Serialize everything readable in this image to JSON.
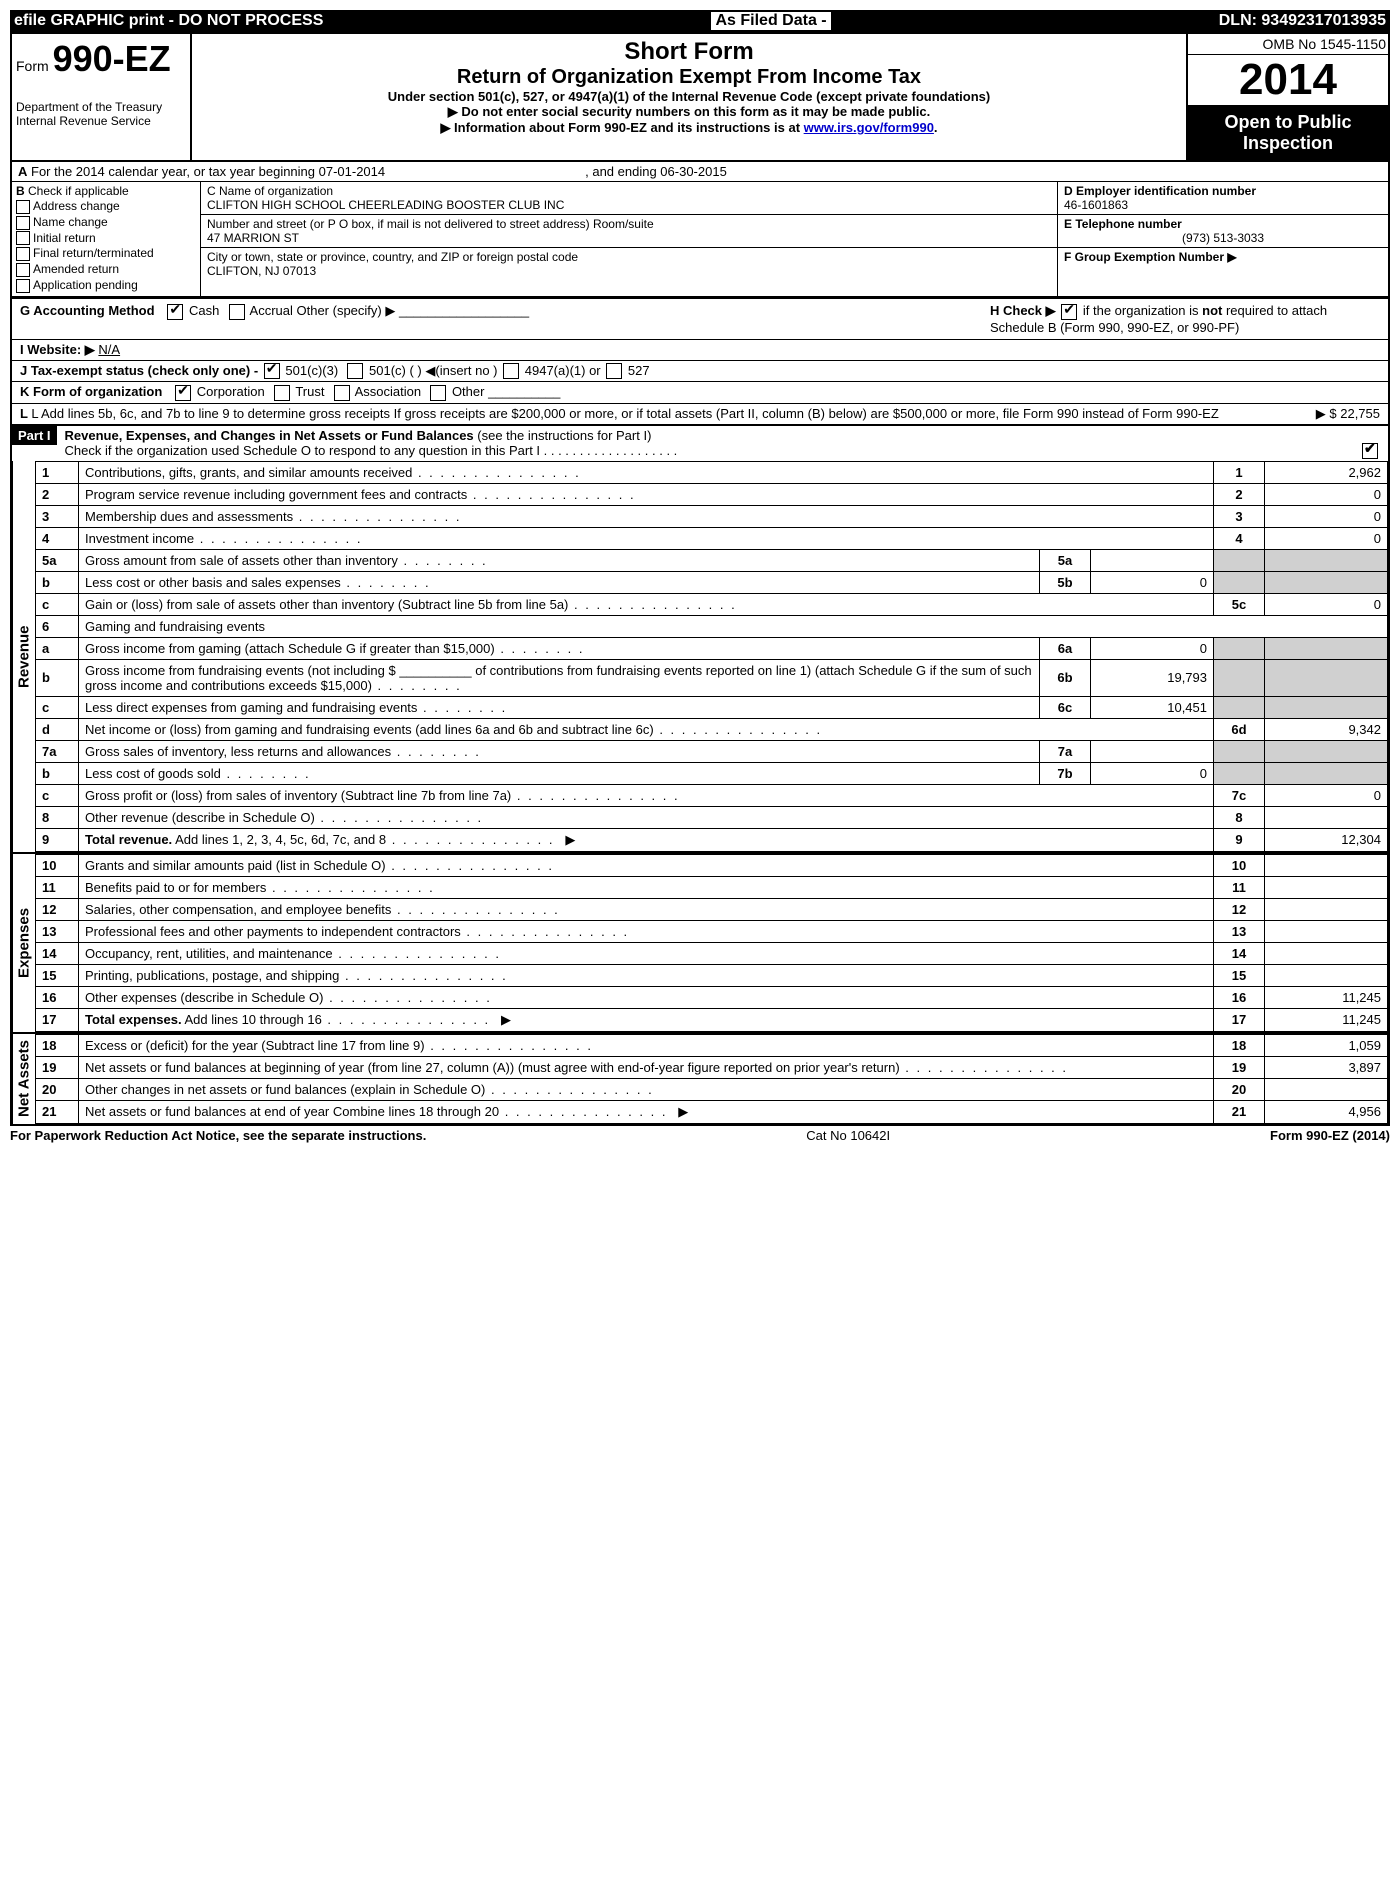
{
  "topbar": {
    "left": "efile GRAPHIC print - DO NOT PROCESS",
    "center": "As Filed Data -",
    "right": "DLN: 93492317013935"
  },
  "header": {
    "form_prefix": "Form",
    "form_name": "990-EZ",
    "dept1": "Department of the Treasury",
    "dept2": "Internal Revenue Service",
    "short_form": "Short Form",
    "main_title": "Return of Organization Exempt From Income Tax",
    "subtitle": "Under section 501(c), 527, or 4947(a)(1) of the Internal Revenue Code (except private foundations)",
    "note1": "▶ Do not enter social security numbers on this form as it may be made public.",
    "note2_prefix": "▶ Information about Form 990-EZ and its instructions is at ",
    "note2_link": "www.irs.gov/form990",
    "note2_suffix": ".",
    "omb": "OMB No 1545-1150",
    "year": "2014",
    "open1": "Open to Public",
    "open2": "Inspection"
  },
  "section_a": {
    "a_text": "For the 2014 calendar year, or tax year beginning 07-01-2014",
    "a_end": ", and ending 06-30-2015",
    "b_label": "Check if applicable",
    "b_opts": [
      "Address change",
      "Name change",
      "Initial return",
      "Final return/terminated",
      "Amended return",
      "Application pending"
    ],
    "c_label": "C Name of organization",
    "c_value": "CLIFTON HIGH SCHOOL CHEERLEADING BOOSTER CLUB INC",
    "addr_label": "Number and street (or P O box, if mail is not delivered to street address) Room/suite",
    "addr_value": "47 MARRION ST",
    "city_label": "City or town, state or province, country, and ZIP or foreign postal code",
    "city_value": "CLIFTON, NJ  07013",
    "d_label": "D Employer identification number",
    "d_value": "46-1601863",
    "e_label": "E Telephone number",
    "e_value": "(973) 513-3033",
    "f_label": "F Group Exemption Number  ▶"
  },
  "section_ghijk": {
    "g": "G Accounting Method",
    "g_cash": "Cash",
    "g_accrual": "Accrual  Other (specify) ▶",
    "h": "H  Check ▶",
    "h_rest": " if the organization is ",
    "h_not": "not",
    "h_rest2": " required to attach Schedule B (Form 990, 990-EZ, or 990-PF)",
    "i": "I Website: ▶",
    "i_value": "N/A",
    "j": "J Tax-exempt status (check only one) -",
    "j_501c3": "501(c)(3)",
    "j_501c": "501(c) (   ) ◀(insert no )",
    "j_4947": "4947(a)(1) or",
    "j_527": "527",
    "k": "K Form of organization",
    "k_corp": "Corporation",
    "k_trust": "Trust",
    "k_assoc": "Association",
    "k_other": "Other",
    "l": "L Add lines 5b, 6c, and 7b to line 9 to determine gross receipts If gross receipts are $200,000 or more, or if total assets (Part II, column (B) below) are $500,000 or more, file Form 990 instead of Form 990-EZ",
    "l_amount": "▶ $ 22,755"
  },
  "part1": {
    "label": "Part I",
    "title": "Revenue, Expenses, and Changes in Net Assets or Fund Balances",
    "title_suffix": " (see the instructions for Part I)",
    "schedO": "Check if the organization used Schedule O to respond to any question in this Part I . . . . . . . . . . . . . . . . . . .",
    "sections": {
      "revenue": "Revenue",
      "expenses": "Expenses",
      "netassets": "Net Assets"
    },
    "lines": [
      {
        "n": "1",
        "desc": "Contributions, gifts, grants, and similar amounts received",
        "box": "1",
        "amt": "2,962"
      },
      {
        "n": "2",
        "desc": "Program service revenue including government fees and contracts",
        "box": "2",
        "amt": "0"
      },
      {
        "n": "3",
        "desc": "Membership dues and assessments",
        "box": "3",
        "amt": "0"
      },
      {
        "n": "4",
        "desc": "Investment income",
        "box": "4",
        "amt": "0"
      },
      {
        "n": "5a",
        "desc": "Gross amount from sale of assets other than inventory",
        "sub": "5a",
        "subamt": ""
      },
      {
        "n": "b",
        "desc": "Less  cost or other basis and sales expenses",
        "sub": "5b",
        "subamt": "0"
      },
      {
        "n": "c",
        "desc": "Gain or (loss) from sale of assets other than inventory (Subtract line 5b from line 5a)",
        "box": "5c",
        "amt": "0"
      },
      {
        "n": "6",
        "desc": "Gaming and fundraising events",
        "header": true
      },
      {
        "n": "a",
        "desc": "Gross income from gaming (attach Schedule G if greater than $15,000)",
        "sub": "6a",
        "subamt": "0"
      },
      {
        "n": "b",
        "desc": "Gross income from fundraising events (not including $ __________ of contributions from fundraising events reported on line 1) (attach Schedule G if the sum of such gross income and contributions exceeds $15,000)",
        "sub": "6b",
        "subamt": "19,793"
      },
      {
        "n": "c",
        "desc": "Less  direct expenses from gaming and fundraising events",
        "sub": "6c",
        "subamt": "10,451"
      },
      {
        "n": "d",
        "desc": "Net income or (loss) from gaming and fundraising events (add lines 6a and 6b and subtract line 6c)",
        "box": "6d",
        "amt": "9,342"
      },
      {
        "n": "7a",
        "desc": "Gross sales of inventory, less returns and allowances",
        "sub": "7a",
        "subamt": ""
      },
      {
        "n": "b",
        "desc": "Less  cost of goods sold",
        "sub": "7b",
        "subamt": "0"
      },
      {
        "n": "c",
        "desc": "Gross profit or (loss) from sales of inventory (Subtract line 7b from line 7a)",
        "box": "7c",
        "amt": "0"
      },
      {
        "n": "8",
        "desc": "Other revenue (describe in Schedule O)",
        "box": "8",
        "amt": ""
      },
      {
        "n": "9",
        "desc": "Total revenue. Add lines 1, 2, 3, 4, 5c, 6d, 7c, and 8",
        "box": "9",
        "amt": "12,304",
        "bold": true,
        "arrow": true
      }
    ],
    "exp_lines": [
      {
        "n": "10",
        "desc": "Grants and similar amounts paid (list in Schedule O)",
        "box": "10",
        "amt": ""
      },
      {
        "n": "11",
        "desc": "Benefits paid to or for members",
        "box": "11",
        "amt": ""
      },
      {
        "n": "12",
        "desc": "Salaries, other compensation, and employee benefits",
        "box": "12",
        "amt": ""
      },
      {
        "n": "13",
        "desc": "Professional fees and other payments to independent contractors",
        "box": "13",
        "amt": ""
      },
      {
        "n": "14",
        "desc": "Occupancy, rent, utilities, and maintenance",
        "box": "14",
        "amt": ""
      },
      {
        "n": "15",
        "desc": "Printing, publications, postage, and shipping",
        "box": "15",
        "amt": ""
      },
      {
        "n": "16",
        "desc": "Other expenses (describe in Schedule O)",
        "box": "16",
        "amt": "11,245"
      },
      {
        "n": "17",
        "desc": "Total expenses. Add lines 10 through 16",
        "box": "17",
        "amt": "11,245",
        "bold": true,
        "arrow": true
      }
    ],
    "net_lines": [
      {
        "n": "18",
        "desc": "Excess or (deficit) for the year (Subtract line 17 from line 9)",
        "box": "18",
        "amt": "1,059"
      },
      {
        "n": "19",
        "desc": "Net assets or fund balances at beginning of year (from line 27, column (A)) (must agree with end-of-year figure reported on prior year's return)",
        "box": "19",
        "amt": "3,897"
      },
      {
        "n": "20",
        "desc": "Other changes in net assets or fund balances (explain in Schedule O)",
        "box": "20",
        "amt": ""
      },
      {
        "n": "21",
        "desc": "Net assets or fund balances at end of year Combine lines 18 through 20",
        "box": "21",
        "amt": "4,956",
        "arrow": true
      }
    ]
  },
  "footer": {
    "left": "For Paperwork Reduction Act Notice, see the separate instructions.",
    "center": "Cat No 10642I",
    "right": "Form 990-EZ (2014)"
  }
}
